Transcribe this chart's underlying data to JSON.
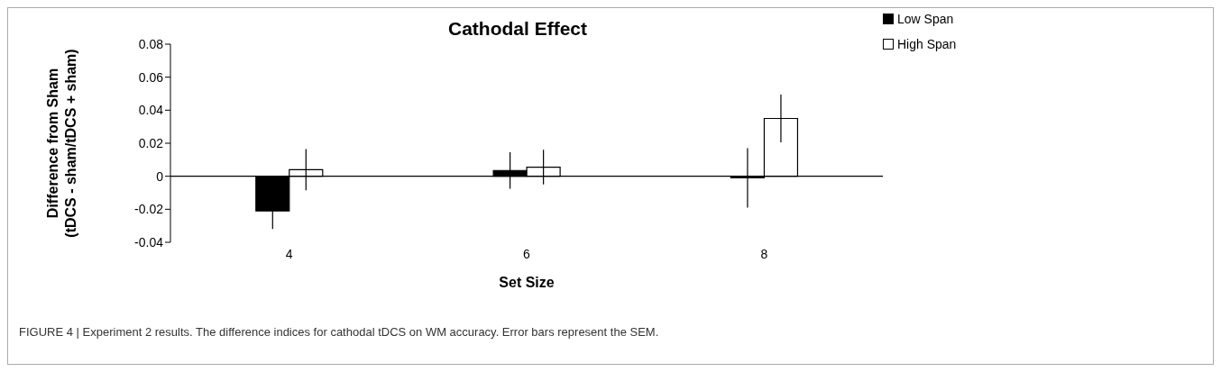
{
  "chart_data": {
    "type": "bar",
    "title": "Cathodal Effect",
    "xlabel": "Set Size",
    "ylabel": "Difference from Sham\n(tDCS - sham/tDCS + sham)",
    "categories": [
      "4",
      "6",
      "8"
    ],
    "series": [
      {
        "name": "Low Span",
        "color": "#000000",
        "values": [
          -0.021,
          0.0035,
          -0.001
        ],
        "errors": [
          0.011,
          0.011,
          0.018
        ]
      },
      {
        "name": "High Span",
        "color": "#ffffff",
        "values": [
          0.004,
          0.0055,
          0.035
        ],
        "errors": [
          0.0125,
          0.0105,
          0.0145
        ]
      }
    ],
    "ylim": [
      -0.04,
      0.08
    ],
    "yticks": [
      -0.04,
      -0.02,
      0,
      0.02,
      0.04,
      0.06,
      0.08
    ],
    "legend": "top right",
    "annotations": [
      "FIGURE 4 | Experiment 2 results. The difference indices for cathodal tDCS on WM accuracy. Error bars represent the SEM."
    ]
  }
}
